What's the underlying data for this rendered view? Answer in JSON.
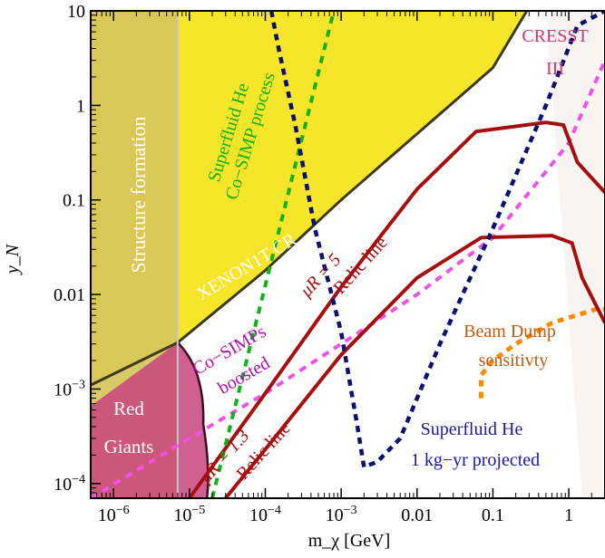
{
  "chart_data": {
    "type": "line",
    "title": "",
    "xlabel": "m_χ [GeV]",
    "ylabel": "y_N",
    "x_scale": "log",
    "y_scale": "log",
    "xlim": [
      5e-07,
      3
    ],
    "ylim": [
      7e-05,
      10
    ],
    "x_ticks": [
      {
        "value": 1e-06,
        "label": "10^-6"
      },
      {
        "value": 1e-05,
        "label": "10^-5"
      },
      {
        "value": 0.0001,
        "label": "10^-4"
      },
      {
        "value": 0.001,
        "label": "10^-3"
      },
      {
        "value": 0.01,
        "label": "0.01"
      },
      {
        "value": 0.1,
        "label": "0.1"
      },
      {
        "value": 1,
        "label": "1"
      }
    ],
    "y_ticks": [
      {
        "value": 0.0001,
        "label": "10^-4"
      },
      {
        "value": 0.001,
        "label": "10^-3"
      },
      {
        "value": 0.01,
        "label": "0.01"
      },
      {
        "value": 0.1,
        "label": "0.1"
      },
      {
        "value": 1,
        "label": "1"
      },
      {
        "value": 10,
        "label": "10"
      }
    ],
    "grid": false,
    "colors": {
      "structure_formation": "#d7c55a",
      "xenon": "#f7e52a",
      "red_giants": "#c8447f",
      "relic": "#a60f0f",
      "superfluid_cr": "#12b21a",
      "superfluid_proj": "#0b0f6e",
      "cosimp": "#f051e6",
      "beam_dump": "#ff8a00",
      "cresst": "#c93a74"
    },
    "regions": [
      {
        "name": "Structure formation",
        "x_max": 7e-06
      },
      {
        "name": "XENON1T CR",
        "boundary": [
          [
            5e-07,
            0.0011
          ],
          [
            7e-06,
            0.0031
          ],
          [
            0.0001,
            0.018
          ],
          [
            0.001,
            0.1
          ],
          [
            0.01,
            0.5
          ],
          [
            0.1,
            2.5
          ],
          [
            0.28,
            10
          ]
        ]
      },
      {
        "name": "Red Giants",
        "x_range": [
          5e-07,
          1.7e-05
        ],
        "y_max": 0.0031
      },
      {
        "name": "CRESST III",
        "x_min": 0.5
      },
      {
        "name": "Beam Dump sensitivty",
        "boundary": [
          [
            0.07,
            0.0008
          ],
          [
            0.07,
            0.0014
          ],
          [
            0.1,
            0.002
          ],
          [
            0.2,
            0.003
          ],
          [
            0.6,
            0.005
          ],
          [
            2.3,
            0.007
          ],
          [
            3,
            0.007
          ],
          [
            3,
            0.0008
          ]
        ]
      }
    ],
    "series": [
      {
        "name": "Superfluid He Co−SIMP process",
        "points": [
          [
            2e-05,
            7e-05
          ],
          [
            0.0008,
            10
          ]
        ]
      },
      {
        "name": "Superfluid He 1 kg−yr projected",
        "points": [
          [
            0.00012,
            10
          ],
          [
            0.00015,
            4
          ],
          [
            0.00025,
            0.6
          ],
          [
            0.00045,
            0.05
          ],
          [
            0.001,
            0.004
          ],
          [
            0.0016,
            0.00045
          ],
          [
            0.002,
            0.00015
          ],
          [
            0.003,
            0.00017
          ],
          [
            0.006,
            0.0003
          ],
          [
            0.02,
            0.003
          ],
          [
            0.1,
            0.05
          ],
          [
            0.5,
            1
          ],
          [
            1.3,
            7
          ],
          [
            3,
            10
          ]
        ]
      },
      {
        "name": "Co−SIMPs boosted",
        "points": [
          [
            5e-07,
            7e-05
          ],
          [
            1e-05,
            0.0003
          ],
          [
            0.0001,
            0.0009
          ],
          [
            0.001,
            0.003
          ],
          [
            0.01,
            0.01
          ],
          [
            0.1,
            0.04
          ],
          [
            1,
            0.4
          ],
          [
            3,
            3
          ]
        ]
      },
      {
        "name": "Relic line μR = 5",
        "points": [
          [
            1e-05,
            7e-05
          ],
          [
            0.0001,
            0.0009
          ],
          [
            0.001,
            0.012
          ],
          [
            0.01,
            0.13
          ],
          [
            0.06,
            0.53
          ],
          [
            0.5,
            0.66
          ],
          [
            0.85,
            0.62
          ],
          [
            1.3,
            0.25
          ],
          [
            3,
            0.12
          ]
        ]
      },
      {
        "name": "Relic line μR = 1.3",
        "points": [
          [
            3e-05,
            7e-05
          ],
          [
            0.0001,
            0.00023
          ],
          [
            0.001,
            0.0023
          ],
          [
            0.01,
            0.015
          ],
          [
            0.07,
            0.04
          ],
          [
            0.6,
            0.042
          ],
          [
            1.1,
            0.035
          ],
          [
            1.5,
            0.015
          ],
          [
            3,
            0.005
          ]
        ]
      }
    ],
    "annotations": [
      "Structure formation",
      "XENON1T CR",
      "Red",
      "Giants",
      "Superfluid He",
      "Co−SIMP process",
      "Co−SIMPs",
      "boosted",
      "μR = 5",
      "Relic line",
      "μR = 1.3",
      "Relic line",
      "Superfluid He",
      "1 kg−yr projected",
      "Beam Dump",
      "sensitivty",
      "CRESST",
      "III"
    ]
  }
}
